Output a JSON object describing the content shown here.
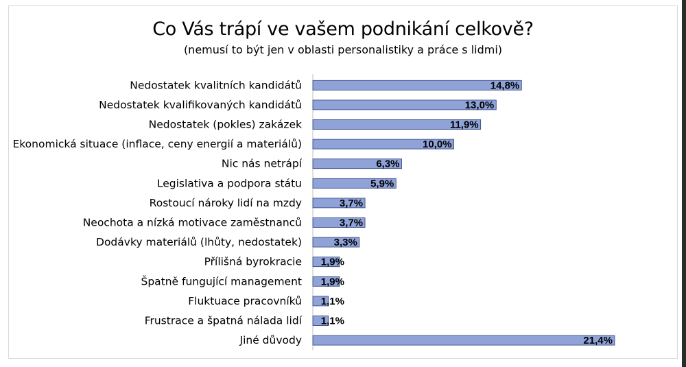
{
  "chart_data": {
    "type": "bar",
    "orientation": "horizontal",
    "title": "Co Vás trápí ve vašem podnikání celkově?",
    "subtitle": "(nemusí to být jen v oblasti personalistiky a práce s lidmi)",
    "categories": [
      "Nedostatek kvalitních kandidátů",
      "Nedostatek kvalifikovaných kandidátů",
      "Nedostatek (pokles) zakázek",
      "Ekonomická situace (inflace, ceny energií a materiálů)",
      "Nic nás netrápí",
      "Legislativa a podpora státu",
      "Rostoucí nároky lidí na mzdy",
      "Neochota a nízká motivace zaměstnanců",
      "Dodávky materiálů (lhůty, nedostatek)",
      "Přílišná byrokracie",
      "Špatně fungující management",
      "Fluktuace pracovníků",
      "Frustrace a špatná nálada lidí",
      "Jiné důvody"
    ],
    "values": [
      14.8,
      13.0,
      11.9,
      10.0,
      6.3,
      5.9,
      3.7,
      3.7,
      3.3,
      1.9,
      1.9,
      1.1,
      1.1,
      21.4
    ],
    "value_labels": [
      "14,8%",
      "13,0%",
      "11,9%",
      "10,0%",
      "6,3%",
      "5,9%",
      "3,7%",
      "3,7%",
      "3,3%",
      "1,9%",
      "1,9%",
      "1,1%",
      "1,1%",
      "21,4%"
    ],
    "xlim": [
      0,
      25
    ],
    "grid": false,
    "legend": "none",
    "bar_color": "#8fa3d9",
    "bar_border_color": "#2f3f7a",
    "axis_color": "#bfbfbf"
  }
}
